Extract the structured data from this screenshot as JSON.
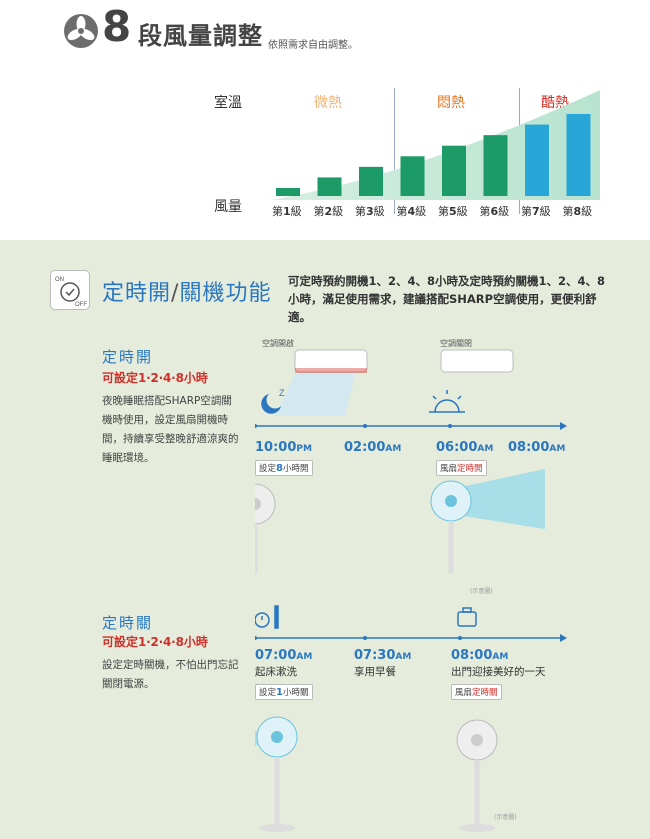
{
  "header": {
    "number": "8",
    "title": "段風量調整",
    "subtitle": "依照需求自由調整。"
  },
  "chart": {
    "room_label": "室溫",
    "wind_label": "風量",
    "temps": [
      {
        "label": "微熱",
        "color": "#f2b472"
      },
      {
        "label": "悶熱",
        "color": "#e8731e"
      },
      {
        "label": "酷熱",
        "color": "#d42e26"
      }
    ],
    "levels": [
      "第1級",
      "第2級",
      "第3級",
      "第4級",
      "第5級",
      "第6級",
      "第7級",
      "第8級"
    ],
    "level_values": [
      1,
      2,
      3,
      4,
      5,
      6,
      7,
      8
    ]
  },
  "timer": {
    "icon_top": "ON",
    "icon_bottom": "OFF",
    "title_a": "定時開",
    "title_sep": "/",
    "title_b": "關機功能",
    "description": "可定時預約開機1、2、4、8小時及定時預約關機1、2、4、8小時，滿足使用需求，建議搭配SHARP空調使用，更便利舒適。"
  },
  "on_section": {
    "heading": "定時開",
    "setting": "可設定1‧2‧4‧8小時",
    "body": "夜晚睡眠搭配SHARP空調關機時使用，設定風扇開機時間，持續享受整晚舒適涼爽的睡眠環境。",
    "ac_on_label": "空調開啟",
    "ac_off_label": "空調關閉",
    "times": [
      {
        "t": "10:00",
        "ap": "PM"
      },
      {
        "t": "02:00",
        "ap": "AM"
      },
      {
        "t": "06:00",
        "ap": "AM"
      },
      {
        "t": "08:00",
        "ap": "AM"
      }
    ],
    "chip1_pre": "設定",
    "chip1_num": "8",
    "chip1_post": "小時開",
    "chip2_pre": "風扇",
    "chip2_post": "定時開",
    "note": "(示意圖)"
  },
  "off_section": {
    "heading": "定時關",
    "setting": "可設定1‧2‧4‧8小時",
    "body": "設定定時關機，不怕出門忘記關閉電源。",
    "times": [
      {
        "t": "07:00",
        "ap": "AM",
        "cap": "起床漱洗"
      },
      {
        "t": "07:30",
        "ap": "AM",
        "cap": "享用早餐"
      },
      {
        "t": "08:00",
        "ap": "AM",
        "cap": "出門迎接美好的一天"
      }
    ],
    "chip1_pre": "設定",
    "chip1_num": "1",
    "chip1_post": "小時關",
    "chip2_pre": "風扇",
    "chip2_post": "定時關",
    "note": "(示意圖)"
  }
}
